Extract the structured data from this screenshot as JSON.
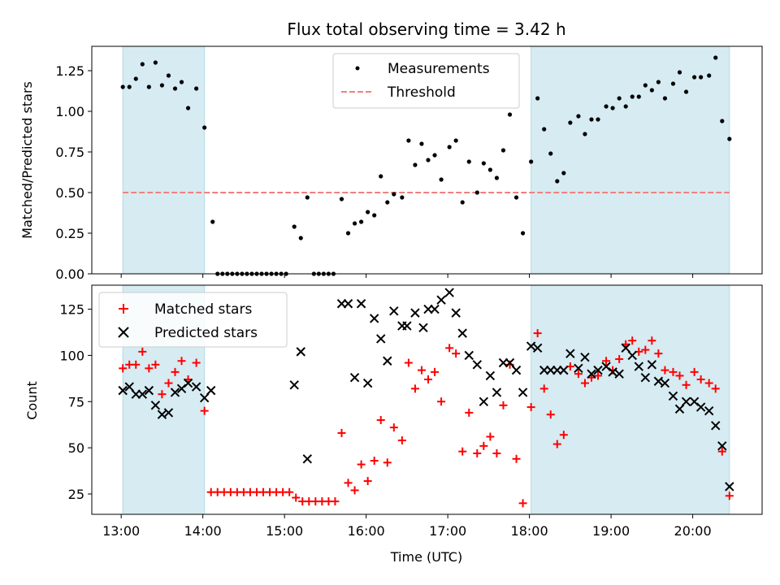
{
  "chart_data": [
    {
      "type": "scatter",
      "title": "Flux total observing time = 3.42 h",
      "ylabel": "Matched/Predicted stars",
      "xlabel": "",
      "xlim": [
        12.64,
        20.85
      ],
      "ylim": [
        0,
        1.4
      ],
      "yticks": [
        0,
        0.25,
        0.5,
        0.75,
        1.0,
        1.25
      ],
      "ytick_labels": [
        "0.00",
        "0.25",
        "0.50",
        "0.75",
        "1.00",
        "1.25"
      ],
      "shaded_ranges": [
        [
          13.02,
          14.02
        ],
        [
          18.02,
          20.45
        ]
      ],
      "threshold": {
        "name": "Threshold",
        "y": 0.5,
        "x_range": [
          13.02,
          20.45
        ],
        "color": "#f08080"
      },
      "legend": [
        "Measurements",
        "Threshold"
      ],
      "legend_position": "upper center",
      "series": [
        {
          "name": "Measurements",
          "color": "#000000",
          "points": [
            [
              13.02,
              1.15
            ],
            [
              13.1,
              1.15
            ],
            [
              13.18,
              1.2
            ],
            [
              13.26,
              1.29
            ],
            [
              13.34,
              1.15
            ],
            [
              13.42,
              1.3
            ],
            [
              13.5,
              1.16
            ],
            [
              13.58,
              1.22
            ],
            [
              13.66,
              1.14
            ],
            [
              13.74,
              1.18
            ],
            [
              13.82,
              1.02
            ],
            [
              13.92,
              1.14
            ],
            [
              14.02,
              0.9
            ],
            [
              14.12,
              0.32
            ],
            [
              14.18,
              0.0
            ],
            [
              14.24,
              0.0
            ],
            [
              14.3,
              0.0
            ],
            [
              14.36,
              0.0
            ],
            [
              14.42,
              0.0
            ],
            [
              14.48,
              0.0
            ],
            [
              14.54,
              0.0
            ],
            [
              14.6,
              0.0
            ],
            [
              14.66,
              0.0
            ],
            [
              14.72,
              0.0
            ],
            [
              14.78,
              0.0
            ],
            [
              14.84,
              0.0
            ],
            [
              14.9,
              0.0
            ],
            [
              14.96,
              0.0
            ],
            [
              15.02,
              0.0
            ],
            [
              15.12,
              0.29
            ],
            [
              15.2,
              0.22
            ],
            [
              15.28,
              0.47
            ],
            [
              15.36,
              0.0
            ],
            [
              15.42,
              0.0
            ],
            [
              15.48,
              0.0
            ],
            [
              15.54,
              0.0
            ],
            [
              15.6,
              0.0
            ],
            [
              15.7,
              0.46
            ],
            [
              15.78,
              0.25
            ],
            [
              15.86,
              0.31
            ],
            [
              15.94,
              0.32
            ],
            [
              16.02,
              0.38
            ],
            [
              16.1,
              0.36
            ],
            [
              16.18,
              0.6
            ],
            [
              16.26,
              0.44
            ],
            [
              16.34,
              0.49
            ],
            [
              16.44,
              0.47
            ],
            [
              16.52,
              0.82
            ],
            [
              16.6,
              0.67
            ],
            [
              16.68,
              0.8
            ],
            [
              16.76,
              0.7
            ],
            [
              16.84,
              0.73
            ],
            [
              16.92,
              0.58
            ],
            [
              17.02,
              0.78
            ],
            [
              17.1,
              0.82
            ],
            [
              17.18,
              0.44
            ],
            [
              17.26,
              0.69
            ],
            [
              17.36,
              0.5
            ],
            [
              17.44,
              0.68
            ],
            [
              17.52,
              0.64
            ],
            [
              17.6,
              0.59
            ],
            [
              17.68,
              0.76
            ],
            [
              17.76,
              0.98
            ],
            [
              17.84,
              0.47
            ],
            [
              17.92,
              0.25
            ],
            [
              18.02,
              0.69
            ],
            [
              18.1,
              1.08
            ],
            [
              18.18,
              0.89
            ],
            [
              18.26,
              0.74
            ],
            [
              18.34,
              0.57
            ],
            [
              18.42,
              0.62
            ],
            [
              18.5,
              0.93
            ],
            [
              18.6,
              0.97
            ],
            [
              18.68,
              0.86
            ],
            [
              18.76,
              0.95
            ],
            [
              18.84,
              0.95
            ],
            [
              18.94,
              1.03
            ],
            [
              19.02,
              1.02
            ],
            [
              19.1,
              1.08
            ],
            [
              19.18,
              1.03
            ],
            [
              19.26,
              1.09
            ],
            [
              19.34,
              1.09
            ],
            [
              19.42,
              1.16
            ],
            [
              19.5,
              1.13
            ],
            [
              19.58,
              1.18
            ],
            [
              19.66,
              1.08
            ],
            [
              19.76,
              1.17
            ],
            [
              19.84,
              1.24
            ],
            [
              19.92,
              1.12
            ],
            [
              20.02,
              1.21
            ],
            [
              20.1,
              1.21
            ],
            [
              20.2,
              1.22
            ],
            [
              20.28,
              1.33
            ],
            [
              20.36,
              0.94
            ],
            [
              20.45,
              0.83
            ]
          ]
        }
      ]
    },
    {
      "type": "scatter",
      "title": "",
      "xlabel": "Time (UTC)",
      "ylabel": "Count",
      "xlim": [
        12.64,
        20.85
      ],
      "ylim": [
        14,
        138
      ],
      "yticks": [
        25,
        50,
        75,
        100,
        125
      ],
      "ytick_labels": [
        "25",
        "50",
        "75",
        "100",
        "125"
      ],
      "xticks": [
        13,
        14,
        15,
        16,
        17,
        18,
        19,
        20
      ],
      "xtick_labels": [
        "13:00",
        "14:00",
        "15:00",
        "16:00",
        "17:00",
        "18:00",
        "19:00",
        "20:00"
      ],
      "shaded_ranges": [
        [
          13.02,
          14.02
        ],
        [
          18.02,
          20.45
        ]
      ],
      "legend": [
        "Matched stars",
        "Predicted stars"
      ],
      "legend_position": "upper left",
      "series": [
        {
          "name": "Matched stars",
          "marker": "+",
          "color": "#ff0000",
          "points": [
            [
              13.02,
              93
            ],
            [
              13.1,
              95
            ],
            [
              13.18,
              95
            ],
            [
              13.26,
              102
            ],
            [
              13.34,
              93
            ],
            [
              13.42,
              95
            ],
            [
              13.5,
              79
            ],
            [
              13.58,
              85
            ],
            [
              13.66,
              91
            ],
            [
              13.74,
              97
            ],
            [
              13.82,
              87
            ],
            [
              13.92,
              96
            ],
            [
              14.02,
              70
            ],
            [
              14.1,
              26
            ],
            [
              14.18,
              26
            ],
            [
              14.26,
              26
            ],
            [
              14.34,
              26
            ],
            [
              14.42,
              26
            ],
            [
              14.5,
              26
            ],
            [
              14.58,
              26
            ],
            [
              14.66,
              26
            ],
            [
              14.74,
              26
            ],
            [
              14.82,
              26
            ],
            [
              14.9,
              26
            ],
            [
              14.98,
              26
            ],
            [
              15.06,
              26
            ],
            [
              15.14,
              23
            ],
            [
              15.22,
              21
            ],
            [
              15.3,
              21
            ],
            [
              15.38,
              21
            ],
            [
              15.46,
              21
            ],
            [
              15.54,
              21
            ],
            [
              15.62,
              21
            ],
            [
              15.7,
              58
            ],
            [
              15.78,
              31
            ],
            [
              15.86,
              27
            ],
            [
              15.94,
              41
            ],
            [
              16.02,
              32
            ],
            [
              16.1,
              43
            ],
            [
              16.18,
              65
            ],
            [
              16.26,
              42
            ],
            [
              16.34,
              61
            ],
            [
              16.44,
              54
            ],
            [
              16.52,
              96
            ],
            [
              16.6,
              82
            ],
            [
              16.68,
              92
            ],
            [
              16.76,
              87
            ],
            [
              16.84,
              91
            ],
            [
              16.92,
              75
            ],
            [
              17.02,
              104
            ],
            [
              17.1,
              101
            ],
            [
              17.18,
              48
            ],
            [
              17.26,
              69
            ],
            [
              17.36,
              47
            ],
            [
              17.44,
              51
            ],
            [
              17.52,
              56
            ],
            [
              17.6,
              47
            ],
            [
              17.68,
              73
            ],
            [
              17.76,
              95
            ],
            [
              17.84,
              44
            ],
            [
              17.92,
              20
            ],
            [
              18.02,
              72
            ],
            [
              18.1,
              112
            ],
            [
              18.18,
              82
            ],
            [
              18.26,
              68
            ],
            [
              18.34,
              52
            ],
            [
              18.42,
              57
            ],
            [
              18.5,
              94
            ],
            [
              18.6,
              90
            ],
            [
              18.68,
              85
            ],
            [
              18.76,
              88
            ],
            [
              18.84,
              89
            ],
            [
              18.94,
              97
            ],
            [
              19.02,
              92
            ],
            [
              19.1,
              98
            ],
            [
              19.18,
              106
            ],
            [
              19.26,
              108
            ],
            [
              19.34,
              102
            ],
            [
              19.42,
              103
            ],
            [
              19.5,
              108
            ],
            [
              19.58,
              101
            ],
            [
              19.66,
              92
            ],
            [
              19.76,
              91
            ],
            [
              19.84,
              89
            ],
            [
              19.92,
              84
            ],
            [
              20.02,
              91
            ],
            [
              20.1,
              87
            ],
            [
              20.2,
              85
            ],
            [
              20.28,
              82
            ],
            [
              20.36,
              48
            ],
            [
              20.45,
              24
            ]
          ]
        },
        {
          "name": "Predicted stars",
          "marker": "x",
          "color": "#000000",
          "points": [
            [
              13.02,
              81
            ],
            [
              13.1,
              83
            ],
            [
              13.18,
              79
            ],
            [
              13.26,
              79
            ],
            [
              13.34,
              81
            ],
            [
              13.42,
              73
            ],
            [
              13.5,
              68
            ],
            [
              13.58,
              69
            ],
            [
              13.66,
              80
            ],
            [
              13.74,
              82
            ],
            [
              13.82,
              85
            ],
            [
              13.92,
              83
            ],
            [
              14.02,
              77
            ],
            [
              14.1,
              81
            ],
            [
              15.12,
              84
            ],
            [
              15.2,
              102
            ],
            [
              15.28,
              44
            ],
            [
              15.7,
              128
            ],
            [
              15.78,
              128
            ],
            [
              15.86,
              88
            ],
            [
              15.94,
              128
            ],
            [
              16.02,
              85
            ],
            [
              16.1,
              120
            ],
            [
              16.18,
              109
            ],
            [
              16.26,
              97
            ],
            [
              16.34,
              124
            ],
            [
              16.44,
              116
            ],
            [
              16.5,
              116
            ],
            [
              16.6,
              123
            ],
            [
              16.7,
              115
            ],
            [
              16.76,
              125
            ],
            [
              16.84,
              125
            ],
            [
              16.92,
              130
            ],
            [
              17.02,
              134
            ],
            [
              17.1,
              123
            ],
            [
              17.18,
              112
            ],
            [
              17.26,
              100
            ],
            [
              17.36,
              95
            ],
            [
              17.44,
              75
            ],
            [
              17.52,
              89
            ],
            [
              17.6,
              80
            ],
            [
              17.68,
              96
            ],
            [
              17.76,
              96
            ],
            [
              17.84,
              92
            ],
            [
              17.92,
              80
            ],
            [
              18.02,
              105
            ],
            [
              18.1,
              104
            ],
            [
              18.18,
              92
            ],
            [
              18.26,
              92
            ],
            [
              18.34,
              92
            ],
            [
              18.42,
              92
            ],
            [
              18.5,
              101
            ],
            [
              18.6,
              93
            ],
            [
              18.68,
              99
            ],
            [
              18.76,
              90
            ],
            [
              18.84,
              92
            ],
            [
              18.94,
              94
            ],
            [
              19.02,
              91
            ],
            [
              19.1,
              90
            ],
            [
              19.18,
              104
            ],
            [
              19.26,
              100
            ],
            [
              19.34,
              94
            ],
            [
              19.42,
              88
            ],
            [
              19.5,
              95
            ],
            [
              19.58,
              86
            ],
            [
              19.66,
              85
            ],
            [
              19.76,
              78
            ],
            [
              19.84,
              71
            ],
            [
              19.92,
              75
            ],
            [
              20.02,
              75
            ],
            [
              20.1,
              72
            ],
            [
              20.2,
              70
            ],
            [
              20.28,
              62
            ],
            [
              20.36,
              51
            ],
            [
              20.45,
              29
            ]
          ]
        }
      ]
    }
  ]
}
